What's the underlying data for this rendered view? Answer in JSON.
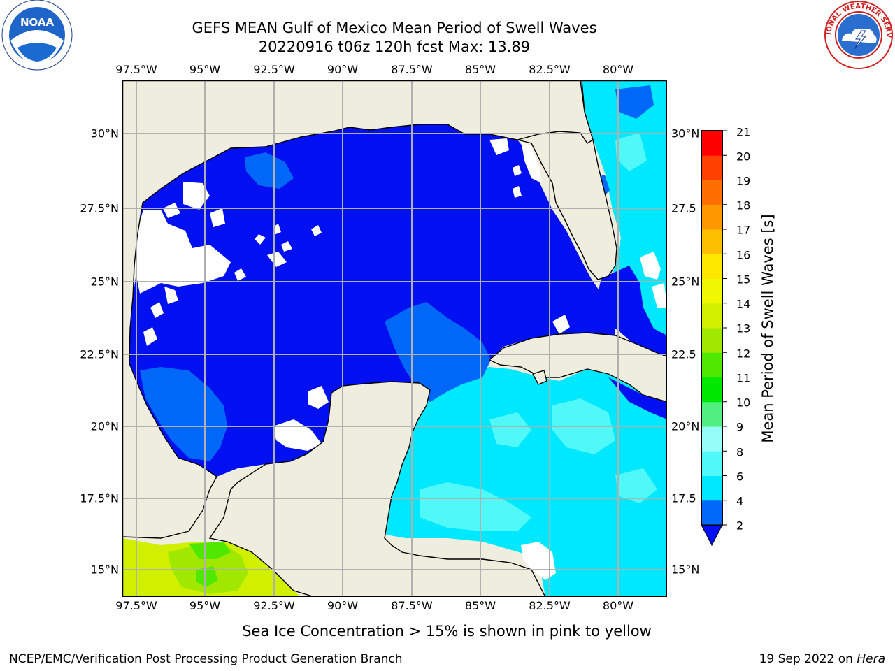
{
  "title": {
    "line1": "GEFS MEAN Gulf of Mexico Mean Period of Swell Waves",
    "line2": "20220916 t06z 120h fcst   Max: 13.89"
  },
  "map": {
    "lon_labels": [
      "97.5°W",
      "95°W",
      "92.5°W",
      "90°W",
      "87.5°W",
      "85°W",
      "82.5°W",
      "80°W"
    ],
    "lat_labels_left": [
      "30°N",
      "27.5°N",
      "25°N",
      "22.5°N",
      "20°N",
      "17.5°N",
      "15°N"
    ],
    "lat_labels_right": [
      "30°N",
      "27.5",
      "25°N",
      "22.5",
      "20°N",
      "17.5",
      "15°N"
    ],
    "extent": {
      "lon": [
        -98,
        -79
      ],
      "lat": [
        14,
        31.5
      ]
    },
    "colors": {
      "land": "#efedde",
      "grid": "#b0b0b0",
      "missing": "#ffffff"
    }
  },
  "colorbar": {
    "title": "Mean Period of Swell Waves [s]",
    "ticks": [
      "2",
      "4",
      "6",
      "8",
      "9",
      "10",
      "11",
      "12",
      "13",
      "14",
      "15",
      "16",
      "17",
      "18",
      "19",
      "20",
      "21"
    ],
    "colors": [
      "#0068f8",
      "#00e8ff",
      "#50f8f8",
      "#96fcf8",
      "#50f080",
      "#00e800",
      "#50e800",
      "#a0e800",
      "#d0f000",
      "#f0f800",
      "#ffe800",
      "#ffbe00",
      "#ff9800",
      "#ff6e00",
      "#ff4000",
      "#ff0000"
    ],
    "extend_color": "#0010f0"
  },
  "footer": {
    "note": "Sea Ice Concentration > 15% is shown in pink to yellow",
    "credit": "NCEP/EMC/Verification Post Processing Product Generation Branch",
    "date": "19 Sep 2022 on",
    "machine": "Hera"
  },
  "logos": {
    "left": {
      "name": "noaa-logo",
      "text": "NOAA"
    },
    "right": {
      "name": "nws-logo",
      "ring": "NATIONAL WEATHER SERVICE"
    }
  }
}
